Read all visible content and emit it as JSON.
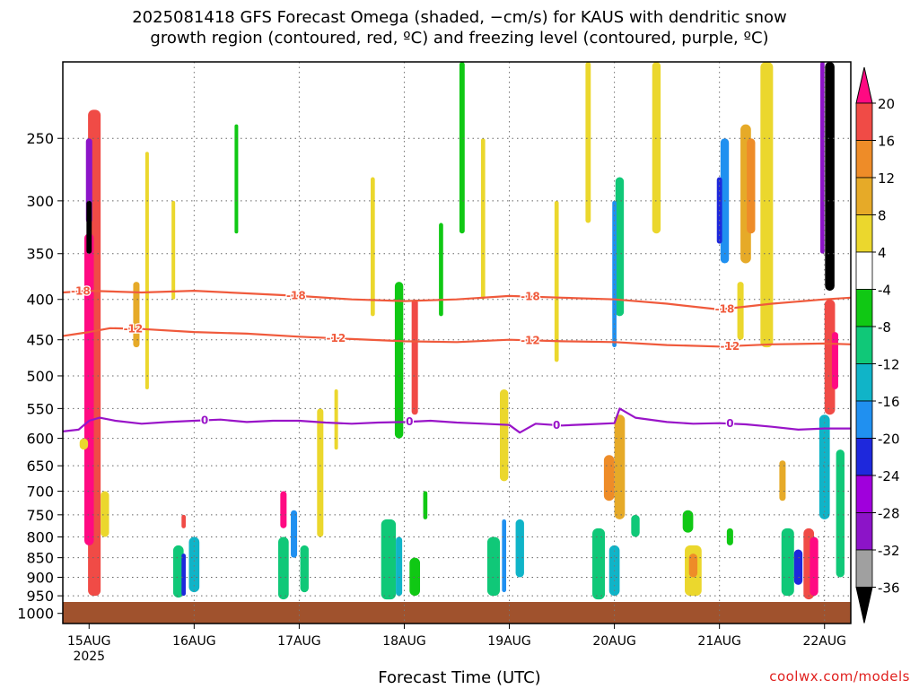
{
  "title_line1": "2025081418 GFS Forecast Omega (shaded, −cm/s) for KAUS with dendritic snow",
  "title_line2": "growth region (contoured, red, ºC) and freezing level (contoured, purple, ºC)",
  "credit": "coolwx.com/models",
  "chart_data": {
    "type": "heatmap",
    "title": "2025081418 GFS Forecast Omega (shaded, −cm/s) for KAUS with dendritic snow growth region (contoured, red, ºC) and freezing level (contoured, purple, ºC)",
    "xlabel": "Forecast Time (UTC)",
    "ylabel": "",
    "x_ticks": [
      "15AUG",
      "16AUG",
      "17AUG",
      "18AUG",
      "19AUG",
      "20AUG",
      "21AUG",
      "22AUG"
    ],
    "x_tick_sublabel": "2025",
    "x_range_days": [
      -0.25,
      7.25
    ],
    "y_ticks": [
      250,
      300,
      350,
      400,
      450,
      500,
      550,
      600,
      650,
      700,
      750,
      800,
      850,
      900,
      950,
      1000
    ],
    "y_range_hpa": [
      200,
      1030
    ],
    "grid": true,
    "colorbar": {
      "levels": [
        -36,
        -32,
        -28,
        -24,
        -20,
        -16,
        -12,
        -8,
        -4,
        4,
        8,
        12,
        16,
        20
      ],
      "tick_labels": [
        "20",
        "16",
        "12",
        "8",
        "4",
        "-4",
        "-8",
        "-12",
        "-16",
        "-20",
        "-24",
        "-28",
        "-32",
        "-36"
      ],
      "colors": [
        "#000000",
        "#a0a0a0",
        "#8c14c8",
        "#a000dc",
        "#1e28dc",
        "#2090f0",
        "#10b4c8",
        "#10c878",
        "#10c814",
        "#ffffff",
        "#ebd72d",
        "#e6aa28",
        "#ee8c28",
        "#f04b46",
        "#ff0a82"
      ]
    },
    "contours": [
      {
        "name": "-18",
        "color": "#f05a3c",
        "points": [
          [
            -0.25,
            392
          ],
          [
            0,
            390
          ],
          [
            0.5,
            392
          ],
          [
            1,
            390
          ],
          [
            1.5,
            393
          ],
          [
            2,
            396
          ],
          [
            2.5,
            400
          ],
          [
            3,
            402
          ],
          [
            3.5,
            400
          ],
          [
            4,
            396
          ],
          [
            4.5,
            398
          ],
          [
            5,
            400
          ],
          [
            5.5,
            405
          ],
          [
            6,
            412
          ],
          [
            6.5,
            405
          ],
          [
            7,
            400
          ],
          [
            7.25,
            398
          ]
        ],
        "label_days": [
          -0.08,
          1.97,
          4.2,
          6.05
        ]
      },
      {
        "name": "-12",
        "color": "#f05a3c",
        "points": [
          [
            -0.25,
            445
          ],
          [
            0,
            440
          ],
          [
            0.2,
            435
          ],
          [
            0.5,
            436
          ],
          [
            1,
            440
          ],
          [
            1.5,
            442
          ],
          [
            2,
            446
          ],
          [
            2.5,
            449
          ],
          [
            3,
            452
          ],
          [
            3.5,
            453
          ],
          [
            4,
            450
          ],
          [
            4.5,
            452
          ],
          [
            5,
            453
          ],
          [
            5.5,
            457
          ],
          [
            6,
            459
          ],
          [
            6.5,
            456
          ],
          [
            7,
            455
          ],
          [
            7.25,
            456
          ]
        ],
        "label_days": [
          0.42,
          2.35,
          4.2,
          6.1
        ]
      },
      {
        "name": "0",
        "color": "#9914c8",
        "points": [
          [
            -0.25,
            588
          ],
          [
            -0.1,
            585
          ],
          [
            0,
            570
          ],
          [
            0.1,
            565
          ],
          [
            0.25,
            570
          ],
          [
            0.5,
            575
          ],
          [
            0.75,
            572
          ],
          [
            1,
            570
          ],
          [
            1.25,
            568
          ],
          [
            1.5,
            572
          ],
          [
            1.75,
            570
          ],
          [
            2,
            570
          ],
          [
            2.25,
            573
          ],
          [
            2.5,
            575
          ],
          [
            2.75,
            573
          ],
          [
            3,
            572
          ],
          [
            3.25,
            570
          ],
          [
            3.5,
            573
          ],
          [
            3.75,
            575
          ],
          [
            4,
            577
          ],
          [
            4.1,
            590
          ],
          [
            4.25,
            575
          ],
          [
            4.5,
            578
          ],
          [
            4.75,
            576
          ],
          [
            5,
            574
          ],
          [
            5.05,
            550
          ],
          [
            5.2,
            565
          ],
          [
            5.5,
            572
          ],
          [
            5.75,
            575
          ],
          [
            6,
            574
          ],
          [
            6.25,
            576
          ],
          [
            6.5,
            580
          ],
          [
            6.75,
            585
          ],
          [
            7,
            583
          ],
          [
            7.25,
            583
          ]
        ],
        "label_days": [
          1.1,
          3.05,
          4.45,
          6.1
        ]
      }
    ]
  }
}
